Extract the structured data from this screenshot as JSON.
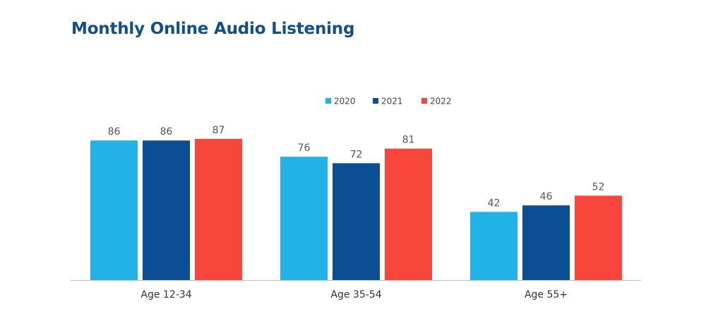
{
  "chart_data": {
    "type": "bar",
    "title": "Monthly Online Audio Listening",
    "categories": [
      "Age 12-34",
      "Age 35-54",
      "Age 55+"
    ],
    "series": [
      {
        "name": "2020",
        "color": "#22b2e6",
        "values": [
          86,
          76,
          42
        ]
      },
      {
        "name": "2021",
        "color": "#0a4f93",
        "values": [
          86,
          72,
          46
        ]
      },
      {
        "name": "2022",
        "color": "#f8463c",
        "values": [
          87,
          81,
          52
        ]
      }
    ],
    "ylim": [
      0,
      100
    ],
    "grid": false,
    "legend_position": "top-center",
    "data_labels": true,
    "axis_color": "#bfbfbf"
  }
}
